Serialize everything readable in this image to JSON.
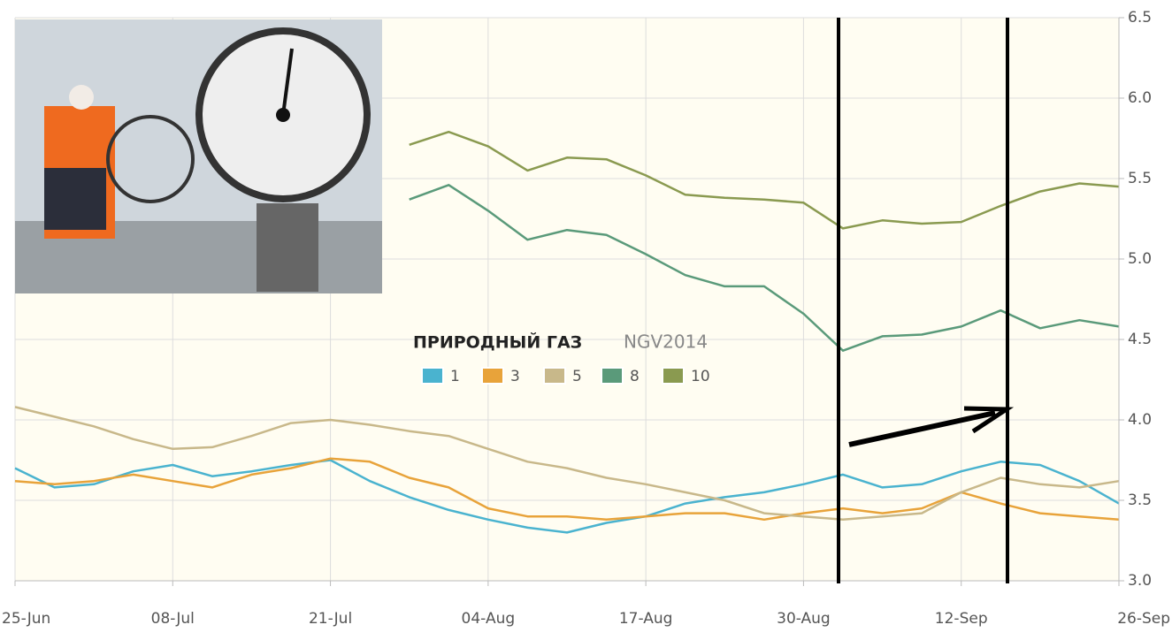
{
  "chart_data": {
    "type": "line",
    "title": "ПРИРОДНЫЙ ГАЗ",
    "subtitle": "NGV2014",
    "categories": [
      "25-Jun",
      null,
      null,
      null,
      "08-Jul",
      null,
      null,
      null,
      "21-Jul",
      null,
      null,
      null,
      "04-Aug",
      null,
      null,
      null,
      "17-Aug",
      null,
      null,
      null,
      "30-Aug",
      null,
      null,
      null,
      "12-Sep",
      null,
      null,
      null,
      "26-Sep"
    ],
    "series": [
      {
        "name": "1",
        "color": "#4ab3cf",
        "values": [
          3.7,
          3.58,
          3.6,
          3.68,
          3.72,
          3.65,
          3.68,
          3.72,
          3.75,
          3.62,
          3.52,
          3.44,
          3.38,
          3.33,
          3.3,
          3.36,
          3.4,
          3.48,
          3.52,
          3.55,
          3.6,
          3.66,
          3.58,
          3.6,
          3.68,
          3.74,
          3.72,
          3.62,
          3.48
        ]
      },
      {
        "name": "3",
        "color": "#e8a33a",
        "values": [
          3.62,
          3.6,
          3.62,
          3.66,
          3.62,
          3.58,
          3.66,
          3.7,
          3.76,
          3.74,
          3.64,
          3.58,
          3.45,
          3.4,
          3.4,
          3.38,
          3.4,
          3.42,
          3.42,
          3.38,
          3.42,
          3.45,
          3.42,
          3.45,
          3.55,
          3.48,
          3.42,
          3.4,
          3.38
        ]
      },
      {
        "name": "5",
        "color": "#c8b88a",
        "values": [
          4.08,
          4.02,
          3.96,
          3.88,
          3.82,
          3.83,
          3.9,
          3.98,
          4.0,
          3.97,
          3.93,
          3.9,
          3.82,
          3.74,
          3.7,
          3.64,
          3.6,
          3.55,
          3.5,
          3.42,
          3.4,
          3.38,
          3.4,
          3.42,
          3.55,
          3.64,
          3.6,
          3.58,
          3.62
        ]
      },
      {
        "name": "8",
        "color": "#5a9a7a",
        "values": [
          null,
          null,
          null,
          null,
          null,
          null,
          null,
          null,
          null,
          null,
          5.37,
          5.46,
          5.3,
          5.12,
          5.18,
          5.15,
          5.03,
          4.9,
          4.83,
          4.83,
          4.66,
          4.43,
          4.52,
          4.53,
          4.58,
          4.68,
          4.57,
          4.62,
          4.58
        ]
      },
      {
        "name": "10",
        "color": "#8a9a50",
        "values": [
          null,
          null,
          null,
          null,
          null,
          null,
          null,
          null,
          null,
          null,
          5.71,
          5.79,
          5.7,
          5.55,
          5.63,
          5.62,
          5.52,
          5.4,
          5.38,
          5.37,
          5.35,
          5.19,
          5.24,
          5.22,
          5.23,
          5.33,
          5.42,
          5.47,
          5.45
        ]
      }
    ],
    "ylim": [
      3,
      6.5
    ],
    "yticks": [
      {
        "value": 3,
        "label": "3.0"
      },
      3.5,
      {
        "value": 4,
        "label": "4.0"
      },
      4.5,
      {
        "value": 5,
        "label": "5.0"
      },
      5.5,
      {
        "value": 6,
        "label": "6.0"
      },
      6.5
    ],
    "grid": true
  }
}
